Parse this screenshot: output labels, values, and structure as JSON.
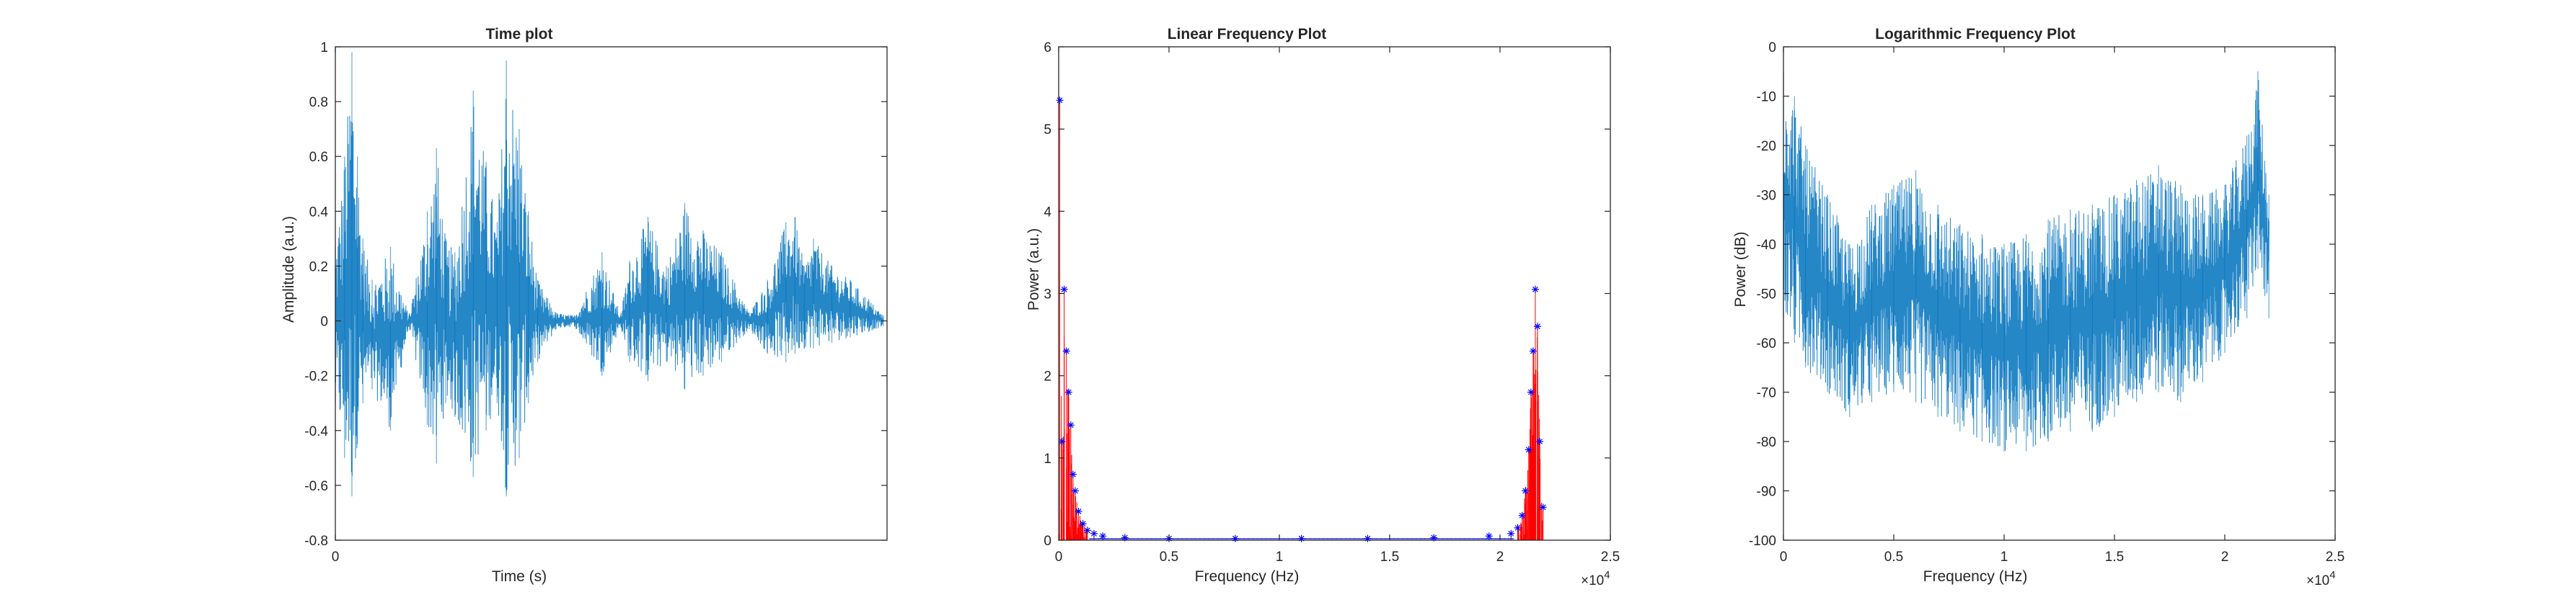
{
  "chart_data": [
    {
      "type": "line",
      "title": "Time plot",
      "xlabel": "Time (s)",
      "ylabel": "Amplitude (a.u.)",
      "xlim": [
        0,
        3
      ],
      "ylim": [
        -0.8,
        1
      ],
      "x_ticks": [
        0
      ],
      "x_tick_labels": [
        "0"
      ],
      "y_ticks": [
        -0.8,
        -0.6,
        -0.4,
        -0.2,
        0,
        0.2,
        0.4,
        0.6,
        0.8,
        1
      ],
      "y_tick_labels": [
        "-0.8",
        "-0.6",
        "-0.4",
        "-0.2",
        "0",
        "0.2",
        "0.4",
        "0.6",
        "0.8",
        "1"
      ],
      "series_color": "#0072bd",
      "series": [
        {
          "x": [
            0,
            0.05,
            0.09,
            0.12,
            0.15,
            0.2,
            0.3,
            0.4,
            0.5,
            0.55,
            0.6,
            0.65,
            0.75,
            0.82,
            0.88,
            0.93,
            1.0,
            1.05,
            1.1,
            1.2,
            1.3,
            1.45,
            1.55,
            1.6,
            1.7,
            1.8,
            1.9,
            2.0,
            2.1,
            2.25,
            2.35,
            2.45,
            2.5,
            2.55,
            2.6,
            2.7,
            2.8,
            2.9,
            2.98
          ],
          "upper": [
            0.27,
            0.6,
            0.98,
            0.6,
            0.3,
            0.15,
            0.27,
            0.02,
            0.4,
            0.63,
            0.3,
            0.25,
            0.84,
            0.58,
            0.36,
            0.95,
            0.7,
            0.4,
            0.15,
            0.03,
            0.02,
            0.25,
            0.02,
            0.22,
            0.38,
            0.2,
            0.43,
            0.33,
            0.25,
            0.03,
            0.15,
            0.36,
            0.38,
            0.2,
            0.3,
            0.2,
            0.15,
            0.08,
            0.02
          ],
          "lower": [
            -0.3,
            -0.5,
            -0.64,
            -0.45,
            -0.3,
            -0.25,
            -0.4,
            -0.02,
            -0.38,
            -0.52,
            -0.3,
            -0.35,
            -0.57,
            -0.4,
            -0.3,
            -0.64,
            -0.5,
            -0.3,
            -0.15,
            -0.03,
            -0.02,
            -0.2,
            -0.02,
            -0.15,
            -0.22,
            -0.15,
            -0.25,
            -0.2,
            -0.15,
            -0.03,
            -0.12,
            -0.15,
            -0.12,
            -0.1,
            -0.1,
            -0.08,
            -0.06,
            -0.04,
            -0.02
          ]
        }
      ]
    },
    {
      "type": "scatter",
      "title": "Linear Frequency Plot",
      "xlabel": "Frequency (Hz)",
      "ylabel": "Power (a.u.)",
      "xlim": [
        0,
        25000
      ],
      "ylim": [
        0,
        6
      ],
      "x_ticks": [
        0,
        5000,
        10000,
        15000,
        20000,
        25000
      ],
      "x_tick_labels": [
        "0",
        "0.5",
        "1",
        "1.5",
        "2",
        "2.5"
      ],
      "x_exponent": "×10",
      "x_exponent_power": "4",
      "y_ticks": [
        0,
        1,
        2,
        3,
        4,
        5,
        6
      ],
      "y_tick_labels": [
        "0",
        "1",
        "2",
        "3",
        "4",
        "5",
        "6"
      ],
      "stem_color": "#ff0000",
      "marker_color": "#0000ff",
      "series": [
        {
          "x": [
            50,
            150,
            250,
            350,
            450,
            550,
            650,
            750,
            900,
            1100,
            1300,
            1600,
            2000,
            3000,
            5000,
            8000,
            11000,
            14000,
            17000,
            19500,
            20500,
            20800,
            21000,
            21150,
            21300,
            21400,
            21500,
            21600,
            21700,
            21800,
            21950
          ],
          "y": [
            5.35,
            1.2,
            3.05,
            2.3,
            1.8,
            1.4,
            0.8,
            0.6,
            0.35,
            0.2,
            0.12,
            0.08,
            0.05,
            0.03,
            0.02,
            0.02,
            0.02,
            0.02,
            0.03,
            0.05,
            0.08,
            0.15,
            0.3,
            0.6,
            1.1,
            1.8,
            2.3,
            3.05,
            2.6,
            1.2,
            0.4
          ]
        }
      ]
    },
    {
      "type": "line",
      "title": "Logarithmic Frequency Plot",
      "xlabel": "Frequency (Hz)",
      "ylabel": "Power (dB)",
      "xlim": [
        0,
        25000
      ],
      "ylim": [
        -100,
        0
      ],
      "x_ticks": [
        0,
        5000,
        10000,
        15000,
        20000,
        25000
      ],
      "x_tick_labels": [
        "0",
        "0.5",
        "1",
        "1.5",
        "2",
        "2.5"
      ],
      "x_exponent": "×10",
      "x_exponent_power": "4",
      "y_ticks": [
        -100,
        -90,
        -80,
        -70,
        -60,
        -50,
        -40,
        -30,
        -20,
        -10,
        0
      ],
      "y_tick_labels": [
        "-100",
        "-90",
        "-80",
        "-70",
        "-60",
        "-50",
        "-40",
        "-30",
        "-20",
        "-10",
        "0"
      ],
      "series_color": "#0072bd",
      "series": [
        {
          "x": [
            0,
            500,
            1000,
            2000,
            3000,
            4000,
            5000,
            6000,
            7000,
            8000,
            9000,
            10000,
            11000,
            12000,
            13000,
            14000,
            15000,
            16000,
            17000,
            18000,
            19000,
            20000,
            21000,
            21500,
            22000
          ],
          "upper": [
            -5,
            -10,
            -20,
            -30,
            -40,
            -32,
            -28,
            -25,
            -32,
            -36,
            -38,
            -40,
            -38,
            -35,
            -33,
            -32,
            -30,
            -27,
            -24,
            -28,
            -30,
            -28,
            -18,
            -5,
            -30
          ],
          "lower": [
            -55,
            -60,
            -65,
            -70,
            -75,
            -72,
            -70,
            -72,
            -75,
            -78,
            -80,
            -82,
            -82,
            -80,
            -78,
            -78,
            -75,
            -72,
            -70,
            -72,
            -68,
            -62,
            -55,
            -45,
            -55
          ]
        }
      ]
    }
  ]
}
